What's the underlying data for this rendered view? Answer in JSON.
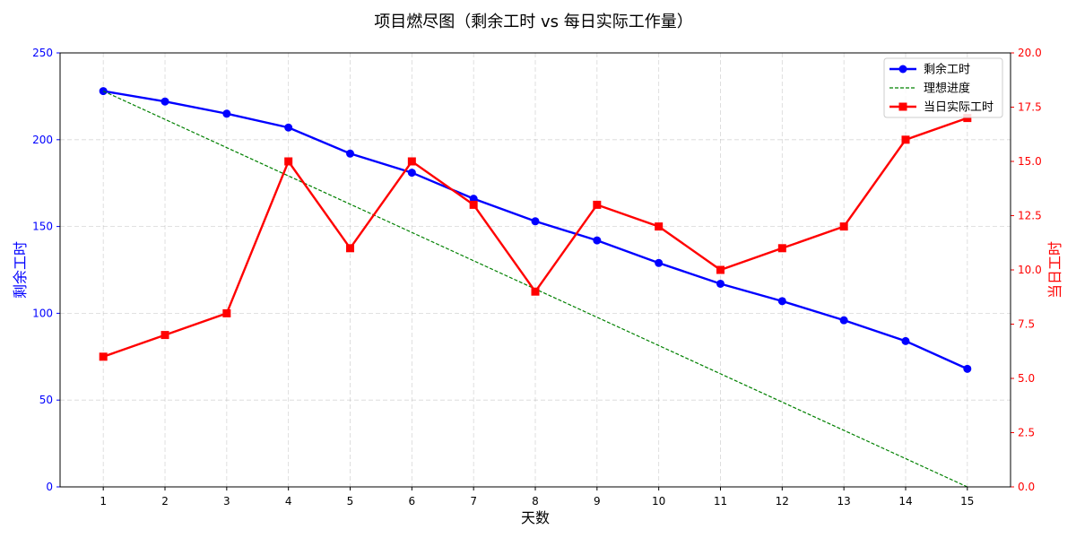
{
  "chart_data": {
    "type": "line",
    "title": "项目燃尽图（剩余工时 vs 每日实际工作量）",
    "xlabel": "天数",
    "ylabel_left": "剩余工时",
    "ylabel_right": "当日工时",
    "x": [
      1,
      2,
      3,
      4,
      5,
      6,
      7,
      8,
      9,
      10,
      11,
      12,
      13,
      14,
      15
    ],
    "xlim": [
      0.3,
      15.7
    ],
    "ylim_left": [
      0,
      250
    ],
    "ylim_right": [
      0,
      20
    ],
    "yticks_left": [
      "0",
      "50",
      "100",
      "150",
      "200",
      "250"
    ],
    "yticks_right": [
      "0.0",
      "2.5",
      "5.0",
      "7.5",
      "10.0",
      "12.5",
      "15.0",
      "17.5",
      "20.0"
    ],
    "grid": true,
    "legend_position": "top-right",
    "colors": {
      "left_axis": "#0000ff",
      "right_axis": "#ff0000",
      "remaining": "#0000ff",
      "ideal": "#008000",
      "daily": "#ff0000"
    },
    "series": [
      {
        "name": "剩余工时",
        "axis": "left",
        "style": "solid-circle",
        "values": [
          228,
          222,
          215,
          207,
          192,
          181,
          166,
          153,
          142,
          129,
          117,
          107,
          96,
          84,
          68
        ]
      },
      {
        "name": "理想进度",
        "axis": "left",
        "style": "dashed",
        "values": [
          228,
          211.71,
          195.43,
          179.14,
          162.86,
          146.57,
          130.29,
          114,
          97.71,
          81.43,
          65.14,
          48.86,
          32.57,
          16.29,
          0
        ]
      },
      {
        "name": "当日实际工时",
        "axis": "right",
        "style": "solid-square",
        "values": [
          6,
          7,
          8,
          15,
          11,
          15,
          13,
          9,
          13,
          12,
          10,
          11,
          12,
          16,
          17
        ]
      }
    ]
  }
}
